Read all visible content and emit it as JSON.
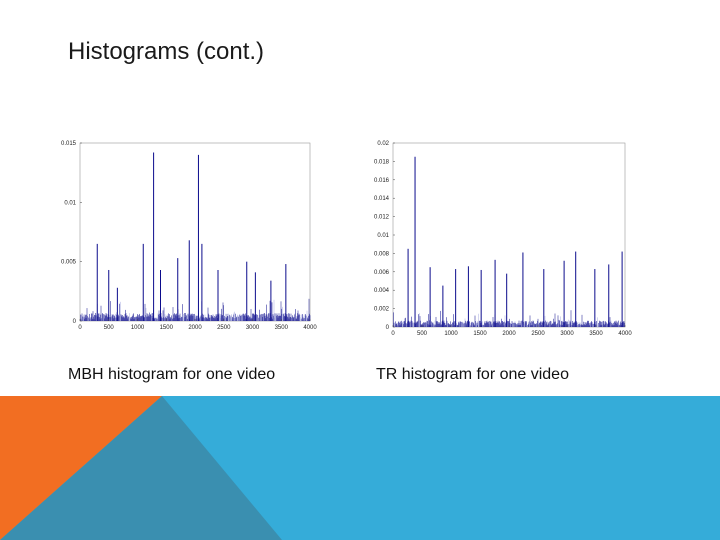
{
  "slide": {
    "title": "Histograms (cont.)",
    "captions": {
      "left": "MBH histogram for one video",
      "right": "TR histogram for one video"
    }
  },
  "colors": {
    "bar_dark": "#0b0b8c",
    "bar_light": "#a9aee0",
    "band_blue": "#35acd9",
    "band_orange": "#f26e22",
    "band_teal": "#3a8fb0"
  },
  "chart_data": [
    {
      "type": "bar",
      "title": "",
      "xlabel": "",
      "ylabel": "",
      "xlim": [
        0,
        4000
      ],
      "ylim": [
        0,
        0.015
      ],
      "x_ticks": [
        "0",
        "500",
        "1000",
        "1500",
        "2000",
        "2500",
        "3000",
        "3500",
        "4000"
      ],
      "y_ticks": [
        "0",
        "0.005",
        "0.01",
        "0.015"
      ],
      "bins": 4000,
      "series": [
        {
          "peaks": [
            {
              "x": 300,
              "y": 0.0065
            },
            {
              "x": 500,
              "y": 0.0043
            },
            {
              "x": 650,
              "y": 0.0028
            },
            {
              "x": 1100,
              "y": 0.0065
            },
            {
              "x": 1280,
              "y": 0.0142
            },
            {
              "x": 1400,
              "y": 0.0043
            },
            {
              "x": 1700,
              "y": 0.0053
            },
            {
              "x": 1900,
              "y": 0.0068
            },
            {
              "x": 2060,
              "y": 0.014
            },
            {
              "x": 2120,
              "y": 0.0065
            },
            {
              "x": 2400,
              "y": 0.0043
            },
            {
              "x": 2900,
              "y": 0.005
            },
            {
              "x": 3050,
              "y": 0.0041
            },
            {
              "x": 3320,
              "y": 0.0034
            },
            {
              "x": 3580,
              "y": 0.0048
            }
          ]
        }
      ]
    },
    {
      "type": "bar",
      "title": "",
      "xlabel": "",
      "ylabel": "",
      "xlim": [
        0,
        4000
      ],
      "ylim": [
        0,
        0.02
      ],
      "x_ticks": [
        "0",
        "500",
        "1000",
        "1500",
        "2000",
        "2500",
        "3000",
        "3500",
        "4000"
      ],
      "y_ticks": [
        "0",
        "0.002",
        "0.004",
        "0.006",
        "0.008",
        "0.01",
        "0.012",
        "0.014",
        "0.016",
        "0.018",
        "0.02"
      ],
      "bins": 4000,
      "series": [
        {
          "peaks": [
            {
              "x": 260,
              "y": 0.0085
            },
            {
              "x": 380,
              "y": 0.0185
            },
            {
              "x": 640,
              "y": 0.0065
            },
            {
              "x": 860,
              "y": 0.0045
            },
            {
              "x": 1080,
              "y": 0.0063
            },
            {
              "x": 1300,
              "y": 0.0066
            },
            {
              "x": 1520,
              "y": 0.0062
            },
            {
              "x": 1760,
              "y": 0.0073
            },
            {
              "x": 1960,
              "y": 0.0058
            },
            {
              "x": 2240,
              "y": 0.0081
            },
            {
              "x": 2600,
              "y": 0.0063
            },
            {
              "x": 2950,
              "y": 0.0072
            },
            {
              "x": 3150,
              "y": 0.0082
            },
            {
              "x": 3480,
              "y": 0.0063
            },
            {
              "x": 3720,
              "y": 0.0068
            },
            {
              "x": 3950,
              "y": 0.0082
            }
          ]
        }
      ]
    }
  ]
}
